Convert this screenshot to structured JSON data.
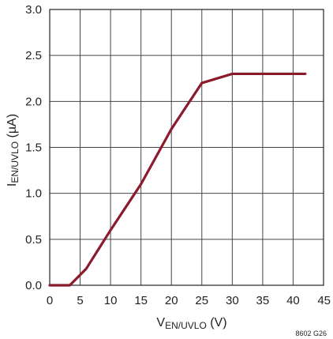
{
  "chart_data": {
    "type": "line",
    "x_axis": {
      "label_main": "V",
      "label_sub": "EN/UVLO",
      "label_unit": " (V)",
      "min": 0,
      "max": 45,
      "ticks": [
        0,
        5,
        10,
        15,
        20,
        25,
        30,
        35,
        40,
        45
      ],
      "tick_labels": [
        "0",
        "5",
        "10",
        "15",
        "20",
        "25",
        "30",
        "35",
        "40",
        "45"
      ]
    },
    "y_axis": {
      "label_main": "I",
      "label_sub": "EN/UVLO",
      "label_unit": " (µA)",
      "min": 0,
      "max": 3,
      "ticks": [
        0,
        0.5,
        1,
        1.5,
        2,
        2.5,
        3
      ],
      "tick_labels": [
        "0.0",
        "0.5",
        "1.0",
        "1.5",
        "2.0",
        "2.5",
        "3.0"
      ]
    },
    "grid": true,
    "series": [
      {
        "color": "#8b1a2b",
        "points": [
          [
            0,
            0
          ],
          [
            3.3,
            0
          ],
          [
            6,
            0.18
          ],
          [
            10,
            0.6
          ],
          [
            15,
            1.1
          ],
          [
            20,
            1.7
          ],
          [
            25,
            2.2
          ],
          [
            30,
            2.3
          ],
          [
            42,
            2.3
          ]
        ]
      }
    ],
    "figure_id": "8602 G26"
  }
}
